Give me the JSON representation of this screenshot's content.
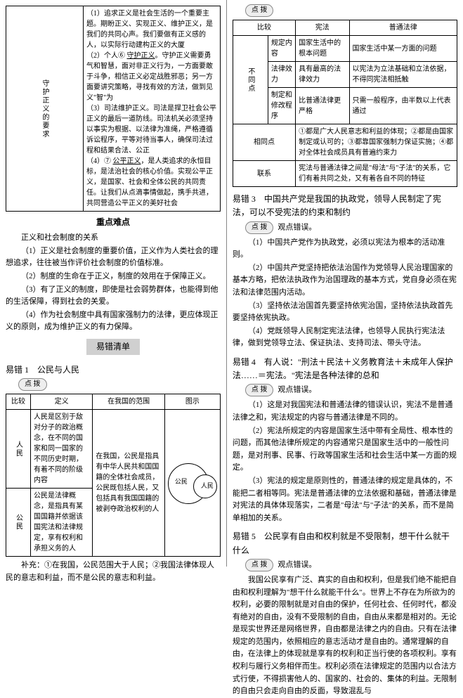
{
  "left": {
    "table1": {
      "rowhead": "守护正义的要求",
      "items": [
        "（1）追求正义是社会生活的一个重要主题。期盼正义、实现正义、维护正义，是我们的共同心声。我们要做有正义感的人，以实际行动建构正义的大厦",
        "（2）个人⑥ <u>守护正义</u>。守护正义需要勇气和智慧，面对非正义行为，一方面要敢于斗争，相信正义必定战胜邪恶；另一方面要讲究策略，寻找有效的方法，做到见义\"智\"为",
        "（3）司法维护正义。司法是捍卫社会公平正义的最后一道防线。司法机关必须坚持以事实为根据、以法律为准绳，严格遵循诉讼程序，平等对待当事人，确保司法过程和结果合法、公正",
        "（4）⑦ <u>公平正义</u>，是人类追求的永恒目标，是法治社会的核心价值。实现公平正义，是国家、社会和全体公民的共同责任。让我们从点滴事情做起，携手共进，共同营造公平正义的美好社会"
      ]
    },
    "sec_zd": "重点难点",
    "zd_title": "正义和社会制度的关系",
    "zd_items": [
      "（1）正义是社会制度的重要价值，正义作为人类社会的理想追求，往往被当作评价社会制度的价值标准。",
      "（2）制度的生命在于正义，制度的效用在于保障正义。",
      "（3）有了正义的制度，即使是社会弱势群体，也能得到他的生活保障，得到社会的关爱。",
      "（4）作为社会制度中具有国家强制力的法律，更应体现正义的原则，成为维护正义的有力保障。"
    ],
    "sec_yc": "易错清单",
    "err1_title": "易错 1　公民与人民",
    "tag": "点 拨",
    "table2": {
      "headers": [
        "比较",
        "定义",
        "在我国的范围",
        "图示"
      ],
      "r1h": "人民",
      "r1a": "人民是区别于敌对分子的政治概念，在不同的国家和同一国家的不同历史时期，有着不同的阶级内容",
      "r2h": "公民",
      "r2a": "公民是法律概念，是指具有某国国籍并依据该国宪法和法律规定，享有权利和承担义务的人",
      "mid": "在我国，公民是指具有中华人民共和国国籍的全体社会成员，公民既包括人民，又包括具有我国国籍的被剥夺政治权利的人",
      "venn_outer": "公民",
      "venn_inner": "人民"
    },
    "supp": "补充：①在我国，公民范围大于人民；②我国法律体现人民的意志和利益，而不是公民的意志和利益。"
  },
  "right": {
    "tag": "点 拨",
    "table3": {
      "h": [
        "比较",
        "宪法",
        "普通法律"
      ],
      "diff_head": "不同点",
      "rows": [
        [
          "规定内容",
          "国家生活中的根本问题",
          "国家生活中某一方面的问题"
        ],
        [
          "法律效力",
          "具有最高的法律效力",
          "以宪法为立法基础和立法依据，不得同宪法相抵触"
        ],
        [
          "制定和修改程序",
          "比普通法律更严格",
          "只需一般程序，由半数以上代表通过"
        ]
      ],
      "same_h": "相同点",
      "same": "①都是广大人民意志和利益的体现；②都是由国家制定或认可的；③都靠国家强制力保证实施；④都对全体社会成员具有普遍约束力",
      "link_h": "联系",
      "link": "宪法与普通法律之间是\"母法\"与\"子法\"的关系，它们有着共同之处，又有着各自不同的特征"
    },
    "err3_title": "易错 3　中国共产党是我国的执政党，领导人民制定了宪法，可以不受宪法的约束和制约",
    "err3_tag_text": "观点错误。",
    "err3_items": [
      "（1）中国共产党作为执政党，必须以宪法为根本的活动准则。",
      "（2）中国共产党坚持把依法治国作为党领导人民治理国家的基本方略，把依法执政作为治国理政的基本方式，党自身必须在宪法和法律范围内活动。",
      "（3）坚持依法治国首先要坚持依宪治国，坚持依法执政首先要坚持依宪执政。",
      "（4）党既领导人民制定宪法法律，也领导人民执行宪法法律，做到党领导立法、保证执法、支持司法、带头守法。"
    ],
    "err4_title": "易错 4　有人说：\"刑法＋民法＋义务教育法＋未成年人保护法……＝宪法。\"宪法是各种法律的总和",
    "err4_tag_text": "观点错误。",
    "err4_items": [
      "（1）这是对我国宪法和普通法律的错误认识，宪法不是普通法律之和，宪法规定的内容与普通法律是不同的。",
      "（2）宪法所规定的内容是国家生活中带有全局性、根本性的问题，而其他法律所规定的内容通常只是国家生活中的一般性问题，是对刑事、民事、行政等国家生活和社会生活中某一方面的规定。",
      "（3）宪法的规定是原则性的，普通法律的规定是具体的，不能把二者相等同。宪法是普通法律的立法依据和基础，普通法律是对宪法的具体体现落实，二者是\"母法\"与\"子法\"的关系，而不是简单相加的关系。"
    ],
    "err5_title": "易错 5　公民享有自由和权利就是不受限制，想干什么就干什么",
    "err5_tag_text": "观点错误。",
    "err5_body": "我国公民享有广泛、真实的自由和权利，但是我们绝不能把自由和权利理解为\"想干什么就能干什么\"。世界上不存在为所欲为的权利，必要的限制就是对自由的保护，任何社会、任何时代，都没有绝对的自由，没有不受限制的自由，自由从来都是相对的。无论是现实世界还是网络世界，自由都是法律之内的自由。只有在法律规定的范围内，依照相应的意志活动才是自由的。通常理解的自由，在法律上的体现就是享有的权利和正当行使的各项权利。享有权利与履行义务相伴而生。权利必须在法律规定的范围内以合法方式行使，不得损害他人的、国家的、社会的、集体的利益。无限制的自由只会走向自由的反面，导致混乱与"
  }
}
